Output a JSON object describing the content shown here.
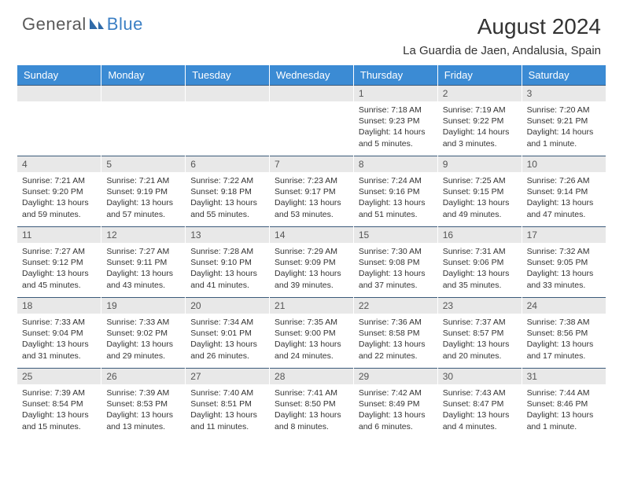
{
  "brand": {
    "general": "General",
    "blue": "Blue"
  },
  "title": "August 2024",
  "location": "La Guardia de Jaen, Andalusia, Spain",
  "colors": {
    "header_bg": "#3b8bd4",
    "header_text": "#ffffff",
    "daynum_bg": "#e8e8e8",
    "daynum_text": "#555555",
    "cell_text": "#333333",
    "rule": "#3b5a7a",
    "logo_gray": "#5a5a5a",
    "logo_blue": "#3b7fc4",
    "page_bg": "#ffffff"
  },
  "typography": {
    "title_fontsize": 28,
    "location_fontsize": 15,
    "weekday_fontsize": 13,
    "daynum_fontsize": 12,
    "cell_fontsize": 10.5
  },
  "weekdays": [
    "Sunday",
    "Monday",
    "Tuesday",
    "Wednesday",
    "Thursday",
    "Friday",
    "Saturday"
  ],
  "weeks": [
    [
      {
        "num": "",
        "sunrise": "",
        "sunset": "",
        "daylight": ""
      },
      {
        "num": "",
        "sunrise": "",
        "sunset": "",
        "daylight": ""
      },
      {
        "num": "",
        "sunrise": "",
        "sunset": "",
        "daylight": ""
      },
      {
        "num": "",
        "sunrise": "",
        "sunset": "",
        "daylight": ""
      },
      {
        "num": "1",
        "sunrise": "Sunrise: 7:18 AM",
        "sunset": "Sunset: 9:23 PM",
        "daylight": "Daylight: 14 hours and 5 minutes."
      },
      {
        "num": "2",
        "sunrise": "Sunrise: 7:19 AM",
        "sunset": "Sunset: 9:22 PM",
        "daylight": "Daylight: 14 hours and 3 minutes."
      },
      {
        "num": "3",
        "sunrise": "Sunrise: 7:20 AM",
        "sunset": "Sunset: 9:21 PM",
        "daylight": "Daylight: 14 hours and 1 minute."
      }
    ],
    [
      {
        "num": "4",
        "sunrise": "Sunrise: 7:21 AM",
        "sunset": "Sunset: 9:20 PM",
        "daylight": "Daylight: 13 hours and 59 minutes."
      },
      {
        "num": "5",
        "sunrise": "Sunrise: 7:21 AM",
        "sunset": "Sunset: 9:19 PM",
        "daylight": "Daylight: 13 hours and 57 minutes."
      },
      {
        "num": "6",
        "sunrise": "Sunrise: 7:22 AM",
        "sunset": "Sunset: 9:18 PM",
        "daylight": "Daylight: 13 hours and 55 minutes."
      },
      {
        "num": "7",
        "sunrise": "Sunrise: 7:23 AM",
        "sunset": "Sunset: 9:17 PM",
        "daylight": "Daylight: 13 hours and 53 minutes."
      },
      {
        "num": "8",
        "sunrise": "Sunrise: 7:24 AM",
        "sunset": "Sunset: 9:16 PM",
        "daylight": "Daylight: 13 hours and 51 minutes."
      },
      {
        "num": "9",
        "sunrise": "Sunrise: 7:25 AM",
        "sunset": "Sunset: 9:15 PM",
        "daylight": "Daylight: 13 hours and 49 minutes."
      },
      {
        "num": "10",
        "sunrise": "Sunrise: 7:26 AM",
        "sunset": "Sunset: 9:14 PM",
        "daylight": "Daylight: 13 hours and 47 minutes."
      }
    ],
    [
      {
        "num": "11",
        "sunrise": "Sunrise: 7:27 AM",
        "sunset": "Sunset: 9:12 PM",
        "daylight": "Daylight: 13 hours and 45 minutes."
      },
      {
        "num": "12",
        "sunrise": "Sunrise: 7:27 AM",
        "sunset": "Sunset: 9:11 PM",
        "daylight": "Daylight: 13 hours and 43 minutes."
      },
      {
        "num": "13",
        "sunrise": "Sunrise: 7:28 AM",
        "sunset": "Sunset: 9:10 PM",
        "daylight": "Daylight: 13 hours and 41 minutes."
      },
      {
        "num": "14",
        "sunrise": "Sunrise: 7:29 AM",
        "sunset": "Sunset: 9:09 PM",
        "daylight": "Daylight: 13 hours and 39 minutes."
      },
      {
        "num": "15",
        "sunrise": "Sunrise: 7:30 AM",
        "sunset": "Sunset: 9:08 PM",
        "daylight": "Daylight: 13 hours and 37 minutes."
      },
      {
        "num": "16",
        "sunrise": "Sunrise: 7:31 AM",
        "sunset": "Sunset: 9:06 PM",
        "daylight": "Daylight: 13 hours and 35 minutes."
      },
      {
        "num": "17",
        "sunrise": "Sunrise: 7:32 AM",
        "sunset": "Sunset: 9:05 PM",
        "daylight": "Daylight: 13 hours and 33 minutes."
      }
    ],
    [
      {
        "num": "18",
        "sunrise": "Sunrise: 7:33 AM",
        "sunset": "Sunset: 9:04 PM",
        "daylight": "Daylight: 13 hours and 31 minutes."
      },
      {
        "num": "19",
        "sunrise": "Sunrise: 7:33 AM",
        "sunset": "Sunset: 9:02 PM",
        "daylight": "Daylight: 13 hours and 29 minutes."
      },
      {
        "num": "20",
        "sunrise": "Sunrise: 7:34 AM",
        "sunset": "Sunset: 9:01 PM",
        "daylight": "Daylight: 13 hours and 26 minutes."
      },
      {
        "num": "21",
        "sunrise": "Sunrise: 7:35 AM",
        "sunset": "Sunset: 9:00 PM",
        "daylight": "Daylight: 13 hours and 24 minutes."
      },
      {
        "num": "22",
        "sunrise": "Sunrise: 7:36 AM",
        "sunset": "Sunset: 8:58 PM",
        "daylight": "Daylight: 13 hours and 22 minutes."
      },
      {
        "num": "23",
        "sunrise": "Sunrise: 7:37 AM",
        "sunset": "Sunset: 8:57 PM",
        "daylight": "Daylight: 13 hours and 20 minutes."
      },
      {
        "num": "24",
        "sunrise": "Sunrise: 7:38 AM",
        "sunset": "Sunset: 8:56 PM",
        "daylight": "Daylight: 13 hours and 17 minutes."
      }
    ],
    [
      {
        "num": "25",
        "sunrise": "Sunrise: 7:39 AM",
        "sunset": "Sunset: 8:54 PM",
        "daylight": "Daylight: 13 hours and 15 minutes."
      },
      {
        "num": "26",
        "sunrise": "Sunrise: 7:39 AM",
        "sunset": "Sunset: 8:53 PM",
        "daylight": "Daylight: 13 hours and 13 minutes."
      },
      {
        "num": "27",
        "sunrise": "Sunrise: 7:40 AM",
        "sunset": "Sunset: 8:51 PM",
        "daylight": "Daylight: 13 hours and 11 minutes."
      },
      {
        "num": "28",
        "sunrise": "Sunrise: 7:41 AM",
        "sunset": "Sunset: 8:50 PM",
        "daylight": "Daylight: 13 hours and 8 minutes."
      },
      {
        "num": "29",
        "sunrise": "Sunrise: 7:42 AM",
        "sunset": "Sunset: 8:49 PM",
        "daylight": "Daylight: 13 hours and 6 minutes."
      },
      {
        "num": "30",
        "sunrise": "Sunrise: 7:43 AM",
        "sunset": "Sunset: 8:47 PM",
        "daylight": "Daylight: 13 hours and 4 minutes."
      },
      {
        "num": "31",
        "sunrise": "Sunrise: 7:44 AM",
        "sunset": "Sunset: 8:46 PM",
        "daylight": "Daylight: 13 hours and 1 minute."
      }
    ]
  ]
}
